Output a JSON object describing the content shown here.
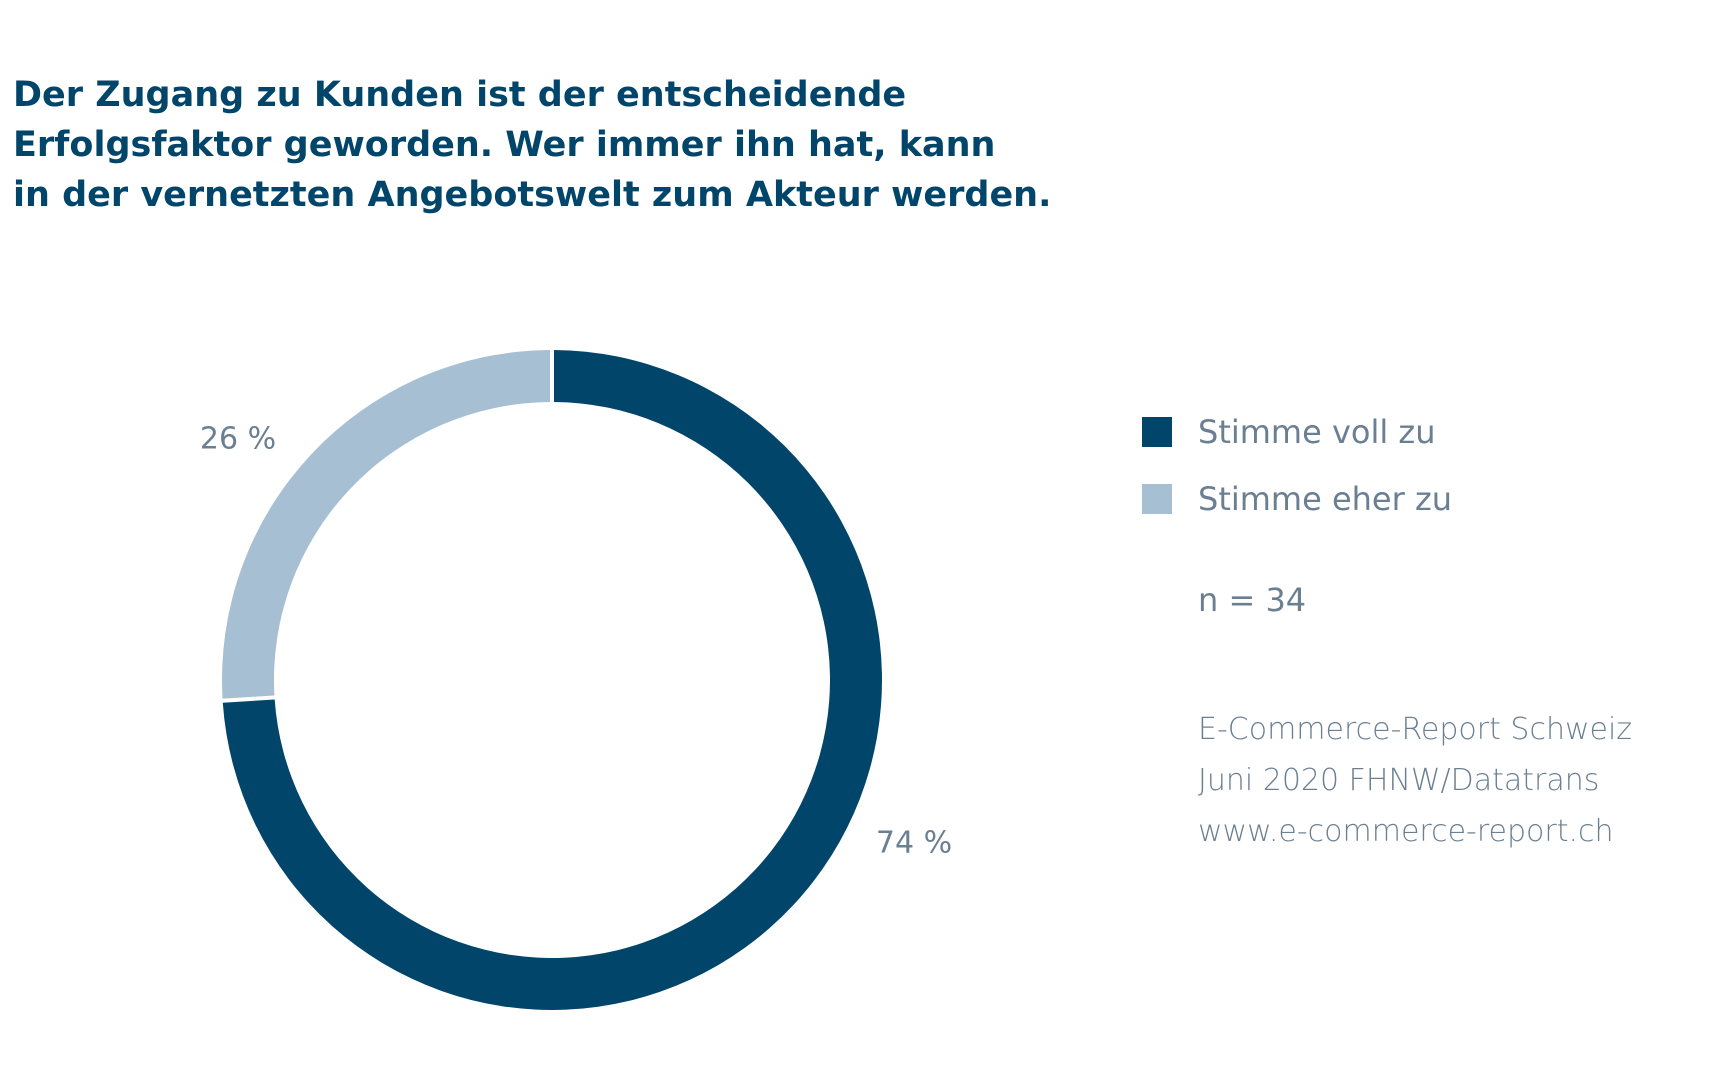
{
  "title_lines": [
    "Der Zugang zu Kunden ist der entscheidende",
    "Erfolgsfaktor geworden. Wer immer ihn hat, kann",
    "in der vernetzten Angebotswelt zum Akteur werden."
  ],
  "chart_data": {
    "type": "pie",
    "variant": "donut",
    "title": "Der Zugang zu Kunden ist der entscheidende Erfolgsfaktor geworden. Wer immer ihn hat, kann in der vernetzten Angebotswelt zum Akteur werden.",
    "categories": [
      "Stimme voll zu",
      "Stimme eher zu"
    ],
    "values": [
      74,
      26
    ],
    "value_labels": [
      "74 %",
      "26 %"
    ],
    "colors": [
      "#01466a",
      "#a7bfd3"
    ],
    "legend_position": "right",
    "start": "top, clockwise"
  },
  "legend": {
    "items": [
      {
        "label": "Stimme voll zu",
        "color": "#01466a"
      },
      {
        "label": "Stimme eher zu",
        "color": "#a7bfd3"
      }
    ]
  },
  "sample_size": "n = 34",
  "source_lines": [
    "E-Commerce-Report Schweiz",
    "Juni 2020 FHNW/Datatrans",
    "www.e-commerce-report.ch"
  ],
  "colors": {
    "title": "#01466a",
    "text": "#6b7f93",
    "background": "#ffffff"
  }
}
